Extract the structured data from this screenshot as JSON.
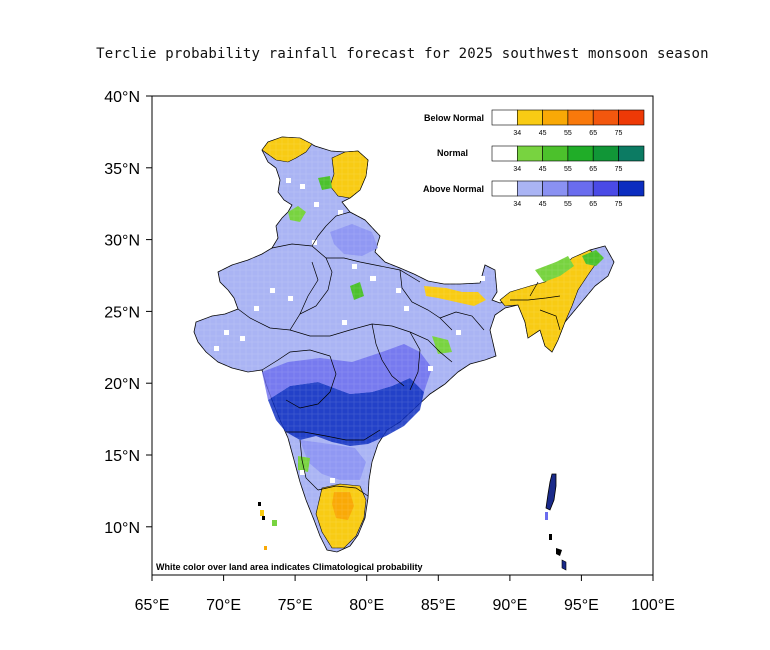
{
  "title": "Terclie probability rainfall forecast for 2025 southwest monsoon  season",
  "footnote": "White color over land area indicates Climatological probability",
  "map": {
    "lon_range": [
      65,
      100
    ],
    "lat_range": [
      6,
      40
    ],
    "lon_ticks": [
      "65°E",
      "70°E",
      "75°E",
      "80°E",
      "85°E",
      "90°E",
      "95°E",
      "100°E"
    ],
    "lat_ticks": [
      "40°N",
      "35°N",
      "30°N",
      "25°N",
      "20°N",
      "15°N",
      "10°N"
    ]
  },
  "legend": {
    "categories": [
      {
        "name": "Below Normal",
        "colors": [
          "#ffffff",
          "#f8cb14",
          "#f9a906",
          "#f9790b",
          "#f3570e",
          "#ee3906"
        ]
      },
      {
        "name": "Normal",
        "colors": [
          "#ffffff",
          "#78d340",
          "#4cc12c",
          "#20ad28",
          "#119637",
          "#0c7b63"
        ]
      },
      {
        "name": "Above Normal",
        "colors": [
          "#ffffff",
          "#aab4f4",
          "#8a91f2",
          "#6a6cee",
          "#4a4ae6",
          "#0c2dc0"
        ]
      }
    ],
    "tick_labels": [
      "34",
      "45",
      "55",
      "65",
      "75"
    ]
  }
}
